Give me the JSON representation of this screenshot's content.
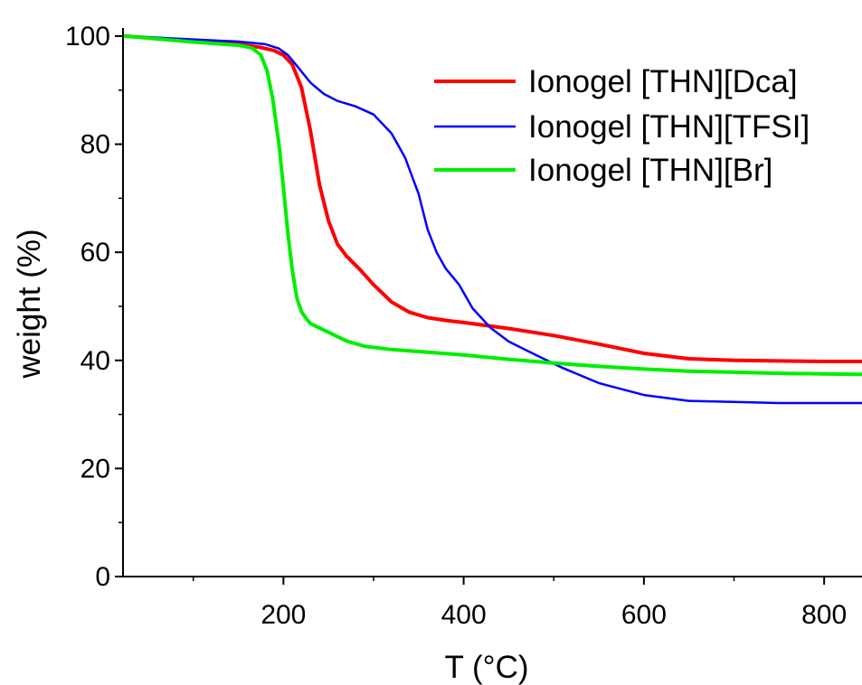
{
  "chart_data": {
    "type": "line",
    "title": "",
    "xlabel": "T (°C)",
    "ylabel": "weight (%)",
    "xlim": [
      22,
      842
    ],
    "ylim": [
      0,
      101.5
    ],
    "x_major_ticks": [
      200,
      400,
      600,
      800
    ],
    "x_minor_ticks": [
      100,
      300,
      500,
      700
    ],
    "y_major_ticks": [
      0,
      20,
      40,
      60,
      80,
      100
    ],
    "y_minor_ticks": [
      10,
      30,
      50,
      70,
      90
    ],
    "x_tick_labels": [
      "200",
      "400",
      "600",
      "800"
    ],
    "y_tick_labels": [
      "0",
      "20",
      "40",
      "60",
      "80",
      "100"
    ],
    "grid": false,
    "legend_position": "top-right",
    "series": [
      {
        "name": "Ionogel [THN][Dca]",
        "color": "#ff0000",
        "x": [
          25,
          100,
          150,
          175,
          190,
          200,
          210,
          220,
          230,
          240,
          250,
          260,
          270,
          285,
          300,
          320,
          340,
          360,
          380,
          400,
          450,
          500,
          550,
          600,
          650,
          700,
          750,
          800,
          842
        ],
        "y": [
          100,
          99.1,
          98.5,
          97.9,
          97.3,
          96.5,
          94.7,
          90.5,
          82.5,
          72.5,
          65.8,
          61.5,
          59.3,
          56.8,
          54.0,
          50.8,
          48.9,
          47.9,
          47.4,
          47.0,
          45.9,
          44.6,
          43.0,
          41.3,
          40.3,
          40.0,
          39.9,
          39.8,
          39.8
        ]
      },
      {
        "name": "Ionogel [THN][TFSI]",
        "color": "#0000ff",
        "x": [
          25,
          100,
          150,
          180,
          195,
          205,
          215,
          230,
          245,
          260,
          280,
          300,
          320,
          335,
          350,
          360,
          370,
          380,
          395,
          410,
          430,
          450,
          480,
          510,
          550,
          600,
          650,
          700,
          750,
          800,
          842
        ],
        "y": [
          100,
          99.4,
          99.0,
          98.5,
          97.7,
          96.5,
          94.5,
          91.4,
          89.3,
          88.0,
          87.0,
          85.5,
          82.0,
          77.5,
          70.8,
          64.2,
          60.0,
          57.0,
          54.0,
          49.6,
          46.0,
          43.5,
          41.0,
          38.6,
          35.8,
          33.6,
          32.5,
          32.3,
          32.1,
          32.1,
          32.1
        ]
      },
      {
        "name": "Ionogel [THN][Br]",
        "color": "#00ee00",
        "x": [
          25,
          100,
          150,
          165,
          175,
          182,
          188,
          195,
          200,
          205,
          210,
          215,
          220,
          225,
          230,
          240,
          250,
          270,
          290,
          320,
          360,
          400,
          450,
          500,
          550,
          600,
          650,
          700,
          750,
          800,
          842
        ],
        "y": [
          100,
          98.9,
          98.3,
          97.8,
          96.5,
          93.5,
          88.5,
          80.0,
          72.0,
          63.5,
          56.5,
          51.5,
          49.0,
          47.8,
          46.8,
          46.0,
          45.2,
          43.6,
          42.6,
          42.0,
          41.5,
          41.0,
          40.2,
          39.5,
          38.9,
          38.4,
          38.0,
          37.8,
          37.6,
          37.5,
          37.4
        ]
      }
    ]
  }
}
